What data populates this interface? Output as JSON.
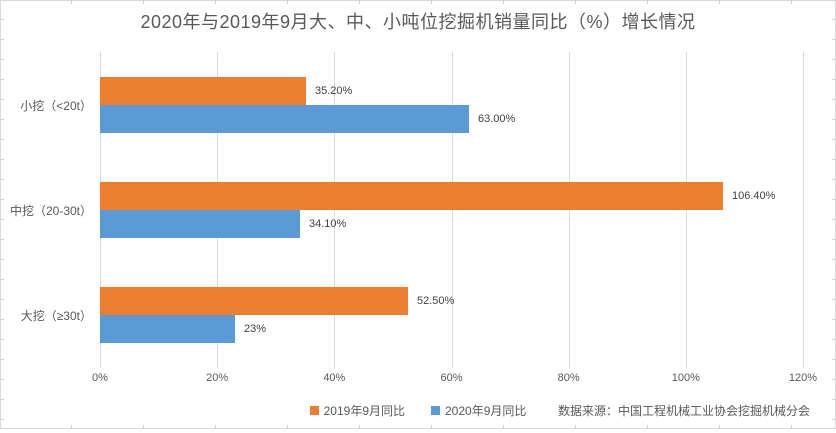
{
  "source_note": "数据来源：中国工程机械工业协会挖掘机械分会",
  "chart_data": {
    "type": "bar",
    "orientation": "horizontal",
    "title": "2020年与2019年9月大、中、小吨位挖掘机销量同比（%）增长情况",
    "categories": [
      "小挖（<20t）",
      "中挖（20-30t）",
      "大挖（≥30t）"
    ],
    "series": [
      {
        "name": "2019年9月同比",
        "color": "#ED7D31",
        "values": [
          35.2,
          106.4,
          52.5
        ],
        "value_labels": [
          "35.20%",
          "106.40%",
          "52.50%"
        ]
      },
      {
        "name": "2020年9月同比",
        "color": "#5B9BD5",
        "values": [
          63.0,
          34.1,
          23.0
        ],
        "value_labels": [
          "63.00%",
          "34.10%",
          "23%"
        ]
      }
    ],
    "x_axis": {
      "min": 0,
      "max": 120,
      "tick_interval": 20,
      "tick_labels": [
        "0%",
        "20%",
        "40%",
        "60%",
        "80%",
        "100%",
        "120%"
      ]
    },
    "grid": true,
    "legend_position": "bottom",
    "colors": {
      "gridline": "#D9D9D9",
      "axis_text": "#595959",
      "data_label": "#404040",
      "title_text": "#595959"
    }
  }
}
